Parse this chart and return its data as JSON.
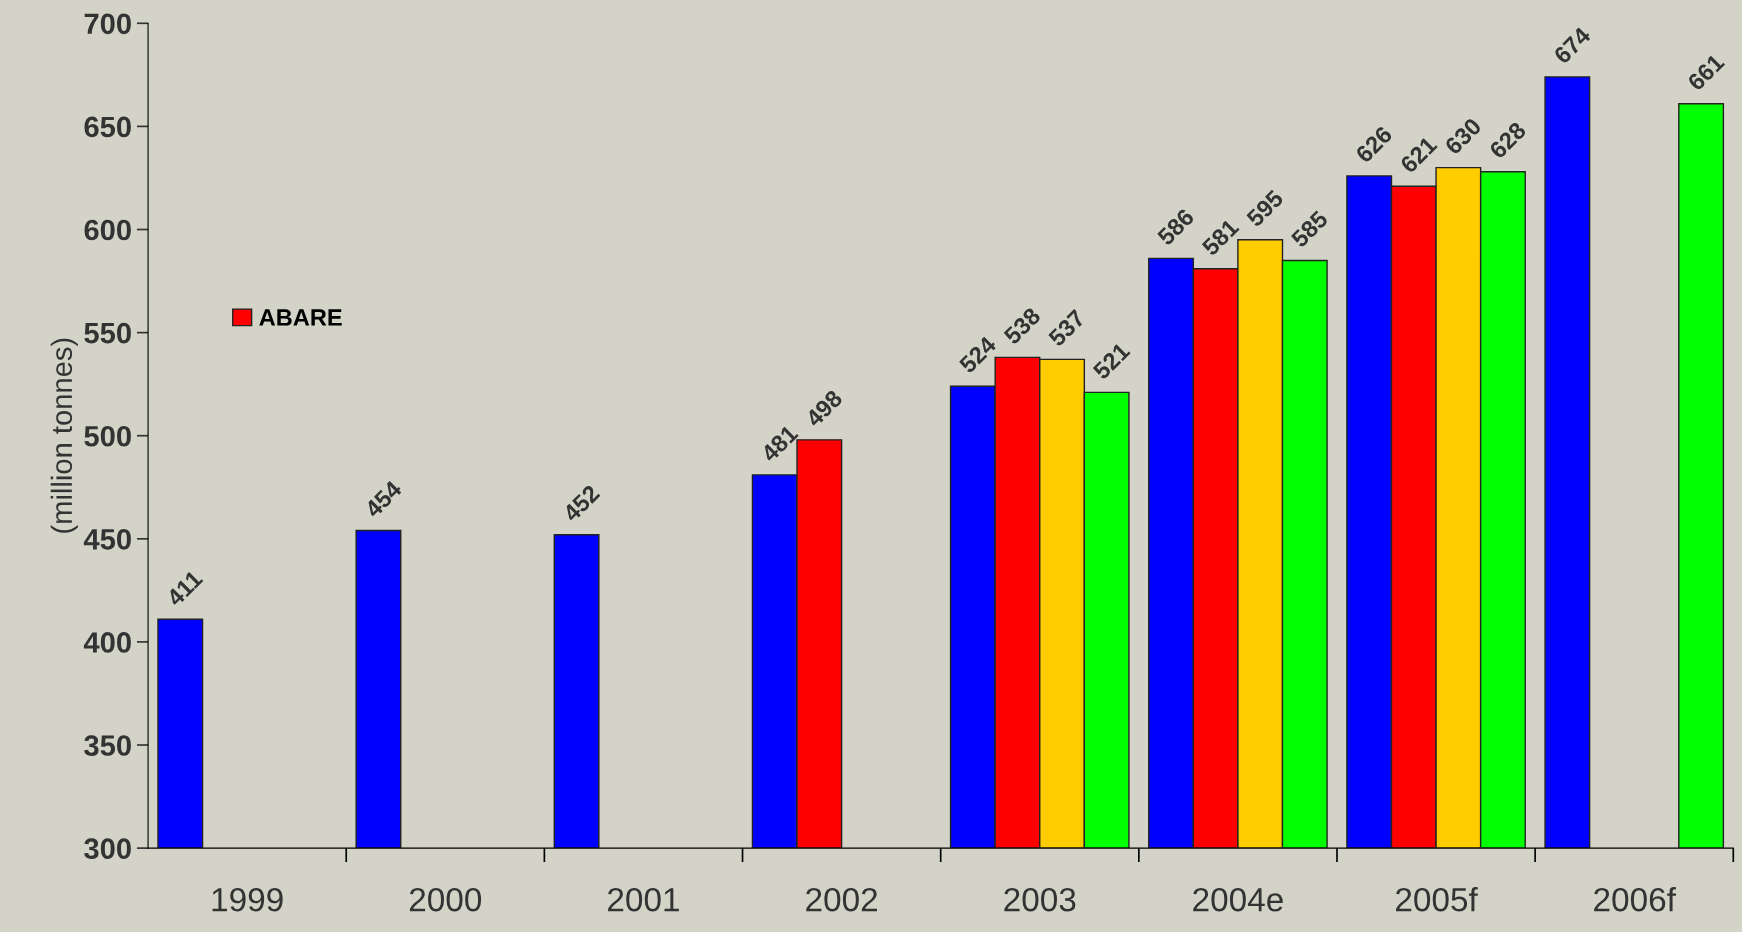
{
  "chart_data": {
    "type": "bar",
    "ylabel": "(million tonnes)",
    "categories": [
      "1999",
      "2000",
      "2001",
      "2002",
      "2003",
      "2004e",
      "2005f",
      "2006f"
    ],
    "series": [
      {
        "color": "#0000ff",
        "values": [
          411,
          454,
          452,
          481,
          524,
          586,
          626,
          674
        ]
      },
      {
        "name": "ABARE",
        "color": "#ff0000",
        "values": [
          null,
          null,
          null,
          498,
          538,
          581,
          621,
          null
        ]
      },
      {
        "color": "#ffcc00",
        "values": [
          null,
          null,
          null,
          null,
          537,
          595,
          630,
          null
        ]
      },
      {
        "color": "#00ff00",
        "values": [
          null,
          null,
          null,
          null,
          521,
          585,
          628,
          661
        ]
      }
    ],
    "ylim": [
      300,
      700
    ],
    "yticks": [
      300,
      350,
      400,
      450,
      500,
      550,
      600,
      650,
      700
    ],
    "data_labels": true,
    "legend": "top left",
    "grid": false
  }
}
